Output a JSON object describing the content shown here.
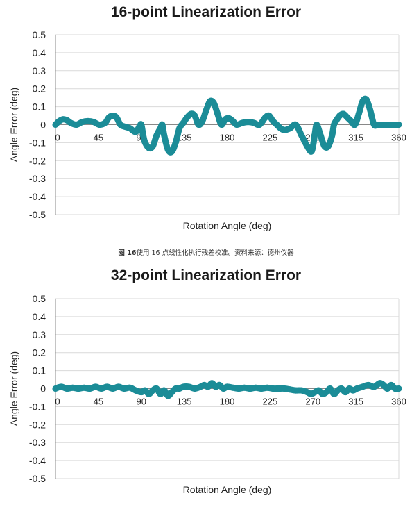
{
  "caption": {
    "figure": "图 16",
    "text": "使用 16 点线性化执行残差校准。资料来源：德州仪器"
  },
  "colors": {
    "series": "#1b8c97",
    "grid": "#d9d9d9",
    "axis": "#888888"
  },
  "chart_data": [
    {
      "type": "line",
      "title": "16-point Linearization Error",
      "xlabel": "Rotation Angle (deg)",
      "ylabel": "Angle Error (deg)",
      "xlim": [
        0,
        360
      ],
      "ylim": [
        -0.5,
        0.5
      ],
      "xticks": [
        0,
        45,
        90,
        135,
        180,
        225,
        270,
        315,
        360
      ],
      "xtick_labels": [
        "0",
        "45",
        "90",
        "135",
        "180",
        "225",
        "270",
        "315",
        "360"
      ],
      "yticks": [
        0.5,
        0.4,
        0.3,
        0.2,
        0.1,
        0,
        -0.1,
        -0.2,
        -0.3,
        -0.4,
        -0.5
      ],
      "ytick_labels": [
        "0.5",
        "0.4",
        "0.3",
        "0.2",
        "0.1",
        "0",
        "-0.1",
        "-0.2",
        "-0.3",
        "-0.4",
        "-0.5"
      ],
      "grid": "horizontal",
      "x": [
        0,
        4,
        8,
        12,
        16,
        22,
        28,
        34,
        40,
        46,
        52,
        56,
        60,
        64,
        68,
        72,
        78,
        84,
        88,
        90,
        92,
        94,
        98,
        102,
        106,
        110,
        112,
        114,
        118,
        122,
        126,
        130,
        134,
        138,
        142,
        146,
        150,
        154,
        158,
        162,
        166,
        170,
        174,
        178,
        182,
        186,
        190,
        196,
        202,
        208,
        214,
        220,
        224,
        228,
        232,
        236,
        240,
        246,
        252,
        258,
        264,
        268,
        270,
        272,
        274,
        278,
        282,
        286,
        290,
        292,
        294,
        298,
        302,
        306,
        310,
        314,
        318,
        322,
        326,
        330,
        334,
        338,
        342,
        346,
        350,
        354,
        358,
        360
      ],
      "values": [
        0.0,
        0.02,
        0.03,
        0.025,
        0.01,
        0.0,
        0.015,
        0.02,
        0.015,
        0.0,
        0.01,
        0.04,
        0.05,
        0.04,
        0.0,
        -0.01,
        -0.02,
        -0.04,
        -0.01,
        0.0,
        -0.06,
        -0.1,
        -0.13,
        -0.12,
        -0.06,
        -0.02,
        0.0,
        -0.06,
        -0.14,
        -0.15,
        -0.1,
        -0.02,
        0.01,
        0.04,
        0.06,
        0.05,
        0.0,
        0.02,
        0.08,
        0.13,
        0.12,
        0.06,
        0.0,
        0.03,
        0.035,
        0.02,
        0.0,
        0.01,
        0.015,
        0.01,
        0.0,
        0.04,
        0.05,
        0.02,
        0.0,
        -0.02,
        -0.03,
        -0.02,
        0.0,
        -0.06,
        -0.12,
        -0.15,
        -0.12,
        -0.05,
        0.0,
        -0.06,
        -0.12,
        -0.12,
        -0.06,
        0.0,
        0.02,
        0.05,
        0.06,
        0.04,
        0.02,
        0.0,
        0.06,
        0.13,
        0.14,
        0.08,
        0.0,
        0.0,
        0.0,
        0.0,
        0.0,
        0.0,
        0.0,
        0.0
      ]
    },
    {
      "type": "line",
      "title": "32-point Linearization Error",
      "xlabel": "Rotation Angle (deg)",
      "ylabel": "Angle Error (deg)",
      "xlim": [
        0,
        360
      ],
      "ylim": [
        -0.5,
        0.5
      ],
      "xticks": [
        0,
        45,
        90,
        135,
        180,
        225,
        270,
        315,
        360
      ],
      "xtick_labels": [
        "0",
        "45",
        "90",
        "135",
        "180",
        "225",
        "270",
        "315",
        "360"
      ],
      "yticks": [
        0.5,
        0.4,
        0.3,
        0.2,
        0.1,
        0,
        -0.1,
        -0.2,
        -0.3,
        -0.4,
        -0.5
      ],
      "ytick_labels": [
        "0.5",
        "0.4",
        "0.3",
        "0.2",
        "0.1",
        "0",
        "-0.1",
        "-0.2",
        "-0.3",
        "-0.4",
        "-0.5"
      ],
      "grid": "horizontal",
      "x": [
        0,
        6,
        12,
        18,
        24,
        30,
        36,
        42,
        48,
        54,
        60,
        66,
        72,
        78,
        84,
        90,
        94,
        98,
        102,
        106,
        110,
        114,
        118,
        122,
        126,
        130,
        134,
        140,
        146,
        152,
        156,
        160,
        164,
        168,
        172,
        176,
        180,
        186,
        192,
        198,
        204,
        210,
        216,
        222,
        228,
        234,
        240,
        246,
        252,
        258,
        264,
        268,
        272,
        276,
        280,
        284,
        288,
        292,
        296,
        300,
        304,
        308,
        312,
        316,
        322,
        328,
        334,
        340,
        344,
        348,
        352,
        356,
        360
      ],
      "values": [
        0.0,
        0.01,
        0.0,
        0.005,
        0.0,
        0.005,
        0.0,
        0.01,
        0.0,
        0.01,
        0.0,
        0.01,
        0.0,
        0.005,
        -0.01,
        -0.02,
        -0.01,
        -0.03,
        -0.01,
        0.0,
        -0.03,
        -0.01,
        -0.04,
        -0.02,
        0.0,
        0.0,
        0.01,
        0.01,
        0.0,
        0.01,
        0.02,
        0.01,
        0.03,
        0.01,
        0.02,
        0.0,
        0.01,
        0.005,
        0.0,
        0.005,
        0.0,
        0.005,
        0.0,
        0.005,
        0.0,
        0.0,
        0.0,
        -0.005,
        -0.01,
        -0.01,
        -0.02,
        -0.03,
        -0.02,
        -0.01,
        -0.03,
        -0.02,
        0.0,
        -0.03,
        -0.01,
        0.0,
        -0.02,
        0.0,
        -0.01,
        0.0,
        0.01,
        0.02,
        0.01,
        0.03,
        0.02,
        0.0,
        0.02,
        0.0,
        0.0
      ]
    }
  ]
}
